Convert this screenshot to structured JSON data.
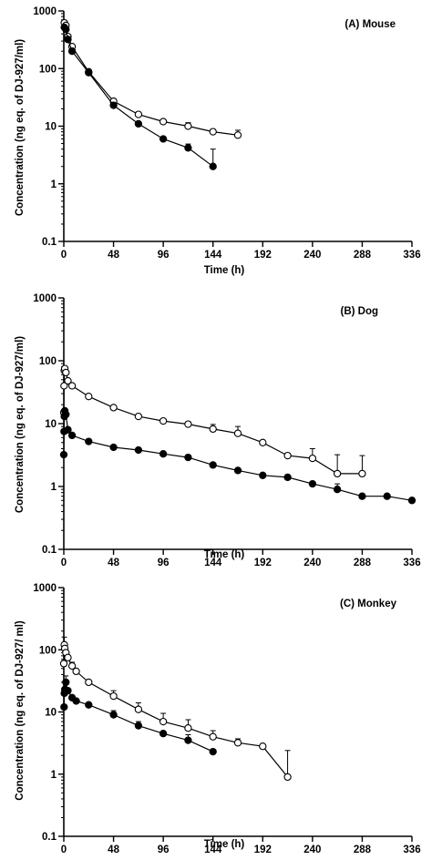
{
  "chart_data": [
    {
      "type": "line",
      "panel_label": "(A) Mouse",
      "xlabel": "Time (h)",
      "ylabel": "Concentration (ng eq. of DJ-927/ml)",
      "yscale": "log",
      "xlim": [
        0,
        336
      ],
      "ylim": [
        0.1,
        1000
      ],
      "xticks": [
        "0",
        "48",
        "96",
        "144",
        "192",
        "240",
        "288",
        "336"
      ],
      "yticks": [
        "0.1",
        "1",
        "10",
        "100",
        "1000"
      ],
      "series": [
        {
          "marker": "open-circle",
          "x": [
            0.5,
            2,
            4,
            8,
            24,
            48,
            72,
            96,
            120,
            144,
            168
          ],
          "y": [
            620,
            560,
            360,
            240,
            88,
            27,
            16,
            12,
            10,
            8,
            7
          ],
          "err_up": [
            null,
            null,
            null,
            null,
            null,
            3,
            1.5,
            1,
            1.5,
            0.8,
            1.5
          ]
        },
        {
          "marker": "filled-circle",
          "x": [
            0.5,
            2,
            4,
            8,
            24,
            48,
            72,
            96,
            120,
            144
          ],
          "y": [
            520,
            480,
            320,
            200,
            85,
            23,
            11,
            6,
            4.2,
            2
          ],
          "err_up": [
            null,
            null,
            null,
            null,
            null,
            2,
            1,
            0.5,
            0.7,
            2
          ]
        }
      ]
    },
    {
      "type": "line",
      "panel_label": "(B) Dog",
      "xlabel": "Time (h)",
      "ylabel": "Concentration (ng eq. of DJ-927/ml)",
      "yscale": "log",
      "xlim": [
        0,
        336
      ],
      "ylim": [
        0.1,
        1000
      ],
      "xticks": [
        "0",
        "48",
        "96",
        "144",
        "192",
        "240",
        "288",
        "336"
      ],
      "yticks": [
        "0.1",
        "1",
        "10",
        "100",
        "1000"
      ],
      "series": [
        {
          "marker": "open-circle",
          "x": [
            0,
            0.25,
            0.5,
            1,
            2,
            4,
            8,
            24,
            48,
            72,
            96,
            120,
            144,
            168,
            192,
            216,
            240,
            264,
            288
          ],
          "y": [
            15,
            40,
            70,
            75,
            65,
            48,
            40,
            27,
            18,
            13,
            11,
            9.8,
            8.2,
            7,
            5,
            3.1,
            2.8,
            1.6,
            1.6
          ],
          "err_up": [
            null,
            null,
            null,
            null,
            null,
            null,
            null,
            null,
            null,
            null,
            null,
            null,
            1.5,
            2,
            null,
            null,
            1.2,
            1.6,
            1.5
          ]
        },
        {
          "marker": "filled-circle",
          "x": [
            0,
            0.25,
            0.5,
            1,
            2,
            4,
            8,
            24,
            48,
            72,
            96,
            120,
            144,
            168,
            192,
            216,
            240,
            264,
            288,
            312,
            336
          ],
          "y": [
            3.2,
            7.5,
            13,
            16,
            14,
            8,
            6.5,
            5.2,
            4.2,
            3.8,
            3.3,
            2.9,
            2.2,
            1.8,
            1.5,
            1.4,
            1.1,
            0.9,
            0.7,
            0.7,
            0.6
          ],
          "err_up": [
            null,
            null,
            null,
            null,
            null,
            null,
            null,
            null,
            null,
            null,
            null,
            null,
            null,
            null,
            null,
            null,
            null,
            0.2,
            null,
            null,
            null
          ]
        }
      ]
    },
    {
      "type": "line",
      "panel_label": "(C) Monkey",
      "xlabel": "Time (h)",
      "ylabel": "Concentration (ng eq. of DJ-927/ ml)",
      "yscale": "log",
      "xlim": [
        0,
        336
      ],
      "ylim": [
        0.1,
        1000
      ],
      "xticks": [
        "0",
        "48",
        "96",
        "144",
        "192",
        "240",
        "288",
        "336"
      ],
      "yticks": [
        "0.1",
        "1",
        "10",
        "100",
        "1000"
      ],
      "series": [
        {
          "marker": "open-circle",
          "x": [
            0,
            0.5,
            1,
            2,
            4,
            8,
            12,
            24,
            48,
            72,
            96,
            120,
            144,
            168,
            192,
            216
          ],
          "y": [
            60,
            120,
            105,
            90,
            75,
            55,
            45,
            30,
            18,
            11,
            7,
            5.5,
            4,
            3.2,
            2.8,
            0.9
          ],
          "err_up": [
            null,
            40,
            null,
            null,
            null,
            8,
            null,
            null,
            4,
            3,
            2.5,
            2,
            1,
            0.5,
            null,
            1.5
          ]
        },
        {
          "marker": "filled-circle",
          "x": [
            0.25,
            0.5,
            1,
            2,
            4,
            8,
            12,
            24,
            48,
            72,
            96,
            120,
            144
          ],
          "y": [
            12,
            20,
            23,
            30,
            22,
            17,
            15,
            13,
            9,
            6,
            4.5,
            3.5,
            2.3
          ],
          "err_up": [
            null,
            null,
            null,
            8,
            null,
            null,
            null,
            null,
            1.5,
            1,
            null,
            0.8,
            null
          ]
        }
      ]
    }
  ]
}
